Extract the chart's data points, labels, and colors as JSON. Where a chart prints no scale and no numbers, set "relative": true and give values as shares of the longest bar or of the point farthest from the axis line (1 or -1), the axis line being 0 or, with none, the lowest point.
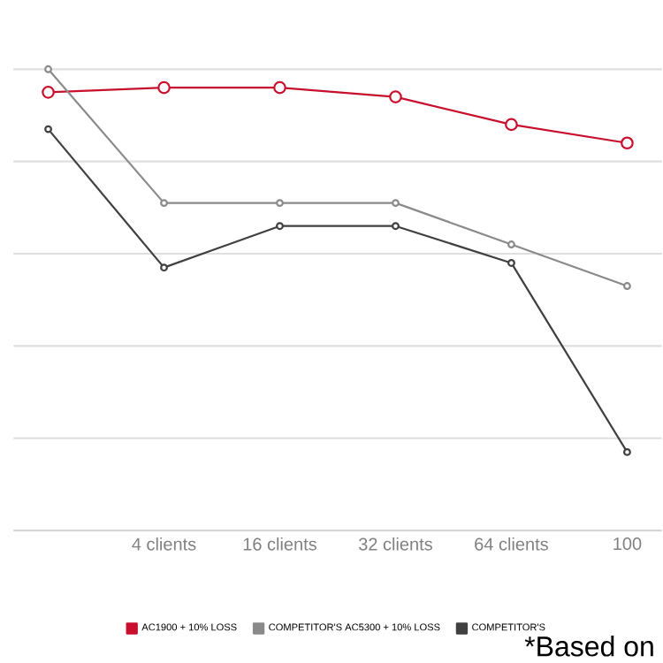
{
  "chart_data": {
    "type": "line",
    "relative": true,
    "categories": [
      null,
      "4 clients",
      "16 clients",
      "32 clients",
      "64 clients",
      "100"
    ],
    "series": [
      {
        "name": "AC1900 + 10% LOSS",
        "color": "#c8102e",
        "values": [
          0.95,
          0.96,
          0.96,
          0.94,
          0.88,
          0.84
        ]
      },
      {
        "name": "COMPETITOR'S AC5300 + 10% LOSS",
        "color": "#8a8a8a",
        "values": [
          1,
          0.71,
          0.71,
          0.71,
          0.62,
          0.53
        ]
      },
      {
        "name": "COMPETITOR'S",
        "color": "#404040",
        "values": [
          0.87,
          0.57,
          0.66,
          0.66,
          0.58,
          0.17
        ]
      }
    ],
    "marker": "circle",
    "grid": "y",
    "legend": "bottom",
    "annotations": [
      "*Based on"
    ]
  }
}
